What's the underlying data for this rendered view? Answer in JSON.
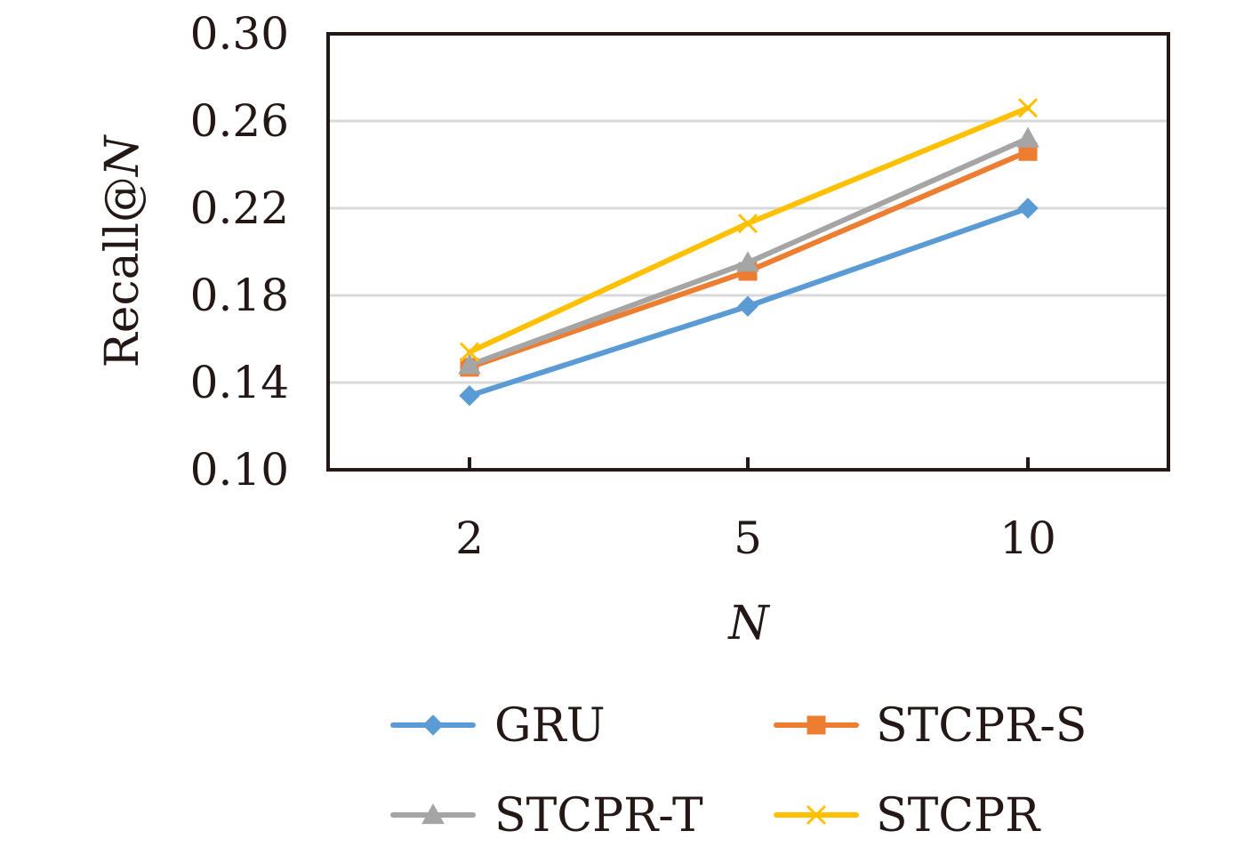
{
  "chart_data": {
    "type": "line",
    "title": "",
    "xlabel": "N",
    "ylabel": {
      "prefix": "Recall@",
      "italic": "N"
    },
    "categories": [
      "2",
      "5",
      "10"
    ],
    "ylim": [
      0.1,
      0.3
    ],
    "yticks": [
      "0.10",
      "0.14",
      "0.18",
      "0.22",
      "0.26",
      "0.30"
    ],
    "ytick_values": [
      0.1,
      0.14,
      0.18,
      0.22,
      0.26,
      0.3
    ],
    "grid": "horizontal",
    "legend_position": "bottom",
    "series": [
      {
        "name": "GRU",
        "values": [
          0.134,
          0.175,
          0.22
        ],
        "color": "#5b9bd5",
        "marker": "diamond"
      },
      {
        "name": "STCPR-S",
        "values": [
          0.147,
          0.191,
          0.246
        ],
        "color": "#ed7d31",
        "marker": "square"
      },
      {
        "name": "STCPR-T",
        "values": [
          0.148,
          0.195,
          0.252
        ],
        "color": "#a5a5a5",
        "marker": "triangle"
      },
      {
        "name": "STCPR",
        "values": [
          0.154,
          0.213,
          0.266
        ],
        "color": "#ffc000",
        "marker": "x"
      }
    ]
  }
}
